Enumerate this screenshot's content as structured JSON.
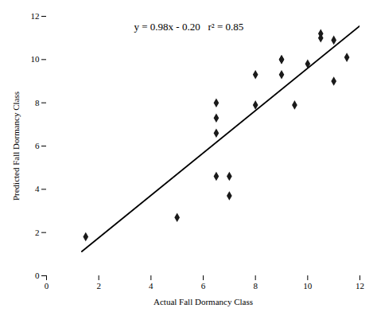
{
  "chart_data": {
    "type": "scatter",
    "xlabel": "Actual Fall Dormancy Class",
    "ylabel": "Predicted Fall Dormancy Class",
    "xlim": [
      0,
      12
    ],
    "ylim": [
      0,
      12
    ],
    "xticks": [
      0,
      2,
      4,
      6,
      8,
      10,
      12
    ],
    "yticks": [
      0,
      2,
      4,
      6,
      8,
      10,
      12
    ],
    "grid": false,
    "annotations": [
      "y = 0.98x - 0.20   r² = 0.85"
    ],
    "series": [
      {
        "type": "line",
        "color": "#000000",
        "x": [
          1.35,
          12.0
        ],
        "values": [
          1.123,
          11.56
        ]
      },
      {
        "type": "scatter",
        "color": "#1a1a1a",
        "marker": "diamond",
        "x": [
          1.5,
          5.0,
          6.5,
          6.5,
          6.5,
          6.5,
          7.0,
          7.0,
          8.0,
          8.0,
          9.0,
          9.0,
          9.0,
          9.5,
          10.0,
          10.5,
          10.5,
          11.0,
          11.0,
          11.5
        ],
        "values": [
          1.8,
          2.7,
          6.6,
          7.3,
          8.0,
          4.6,
          3.7,
          4.6,
          7.9,
          9.3,
          10.0,
          10.0,
          9.3,
          7.9,
          9.8,
          11.0,
          11.2,
          9.0,
          10.9,
          10.1
        ]
      }
    ]
  }
}
